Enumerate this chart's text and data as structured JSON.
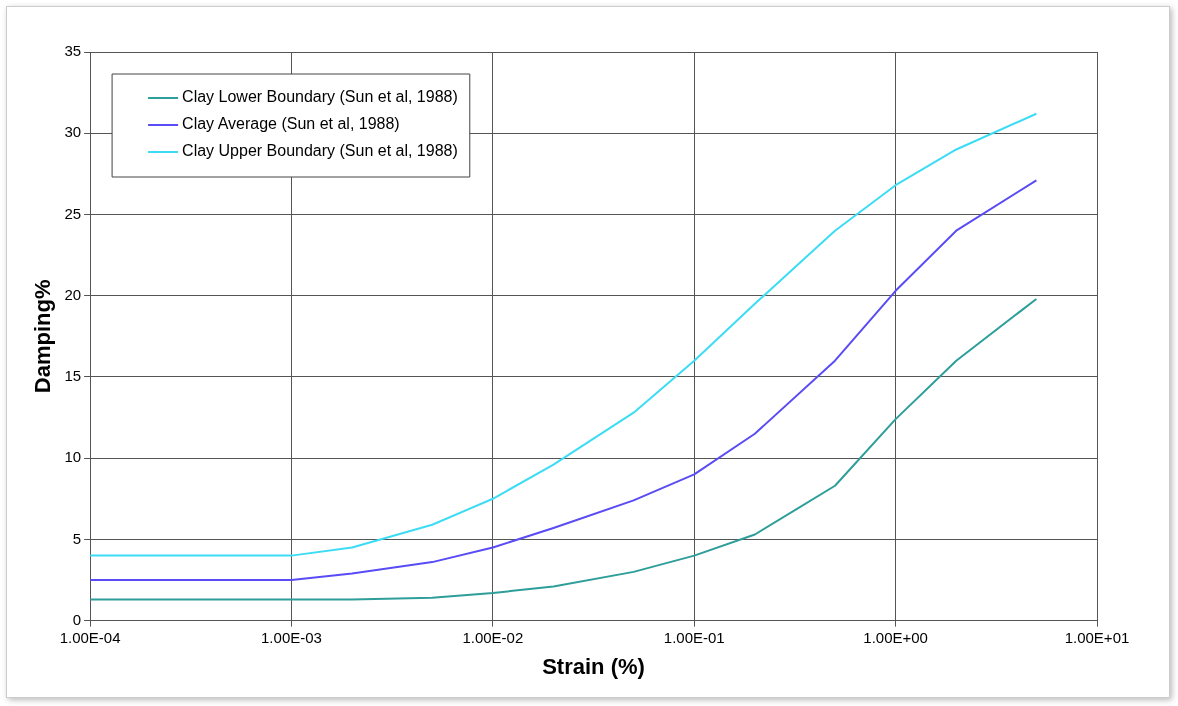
{
  "chart_data": {
    "type": "line",
    "xlabel": "Strain (%)",
    "ylabel": "Damping%",
    "log": "x",
    "grid": true,
    "legend": "top left",
    "marker": "none",
    "line_style": "solid",
    "x": [
      0.0001,
      0.001,
      0.002,
      0.005,
      0.01,
      0.02,
      0.05,
      0.1,
      0.2,
      0.5,
      1,
      2,
      5
    ],
    "xlim": [
      0.0001,
      10
    ],
    "xticks": [
      {
        "value": 0.0001,
        "label": "1.00E-04"
      },
      {
        "value": 0.001,
        "label": "1.00E-03"
      },
      {
        "value": 0.01,
        "label": "1.00E-02"
      },
      {
        "value": 0.1,
        "label": "1.00E-01"
      },
      {
        "value": 1,
        "label": "1.00E+00"
      },
      {
        "value": 10,
        "label": "1.00E+01"
      }
    ],
    "ylim": [
      0,
      35
    ],
    "yticks": [
      0,
      5,
      10,
      15,
      20,
      25,
      30,
      35
    ],
    "series": [
      {
        "name": "Clay Lower Boundary (Sun et al, 1988)",
        "color": "#2e9e9a",
        "values": [
          1.3,
          1.3,
          1.3,
          1.4,
          1.7,
          2.1,
          3.0,
          4.0,
          5.3,
          8.3,
          12.4,
          16.0,
          19.8
        ]
      },
      {
        "name": "Clay Average (Sun et al, 1988)",
        "color": "#5a4cf5",
        "values": [
          2.5,
          2.5,
          2.9,
          3.6,
          4.5,
          5.7,
          7.4,
          9.0,
          11.5,
          16.0,
          20.3,
          24.0,
          27.1
        ]
      },
      {
        "name": "Clay Upper Boundary (Sun et al, 1988)",
        "color": "#3cdcf5",
        "values": [
          4.0,
          4.0,
          4.5,
          5.9,
          7.5,
          9.6,
          12.8,
          16.0,
          19.5,
          24.0,
          26.8,
          29.0,
          31.2
        ]
      }
    ]
  }
}
